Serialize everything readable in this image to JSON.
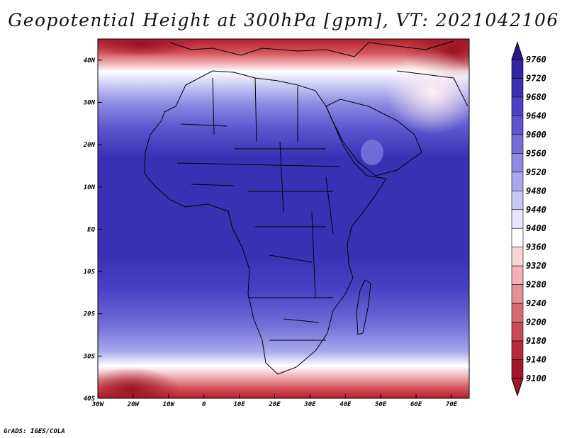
{
  "title": "Geopotential Height at 300hPa [gpm], VT: 2021042106",
  "credit": "GrADS: IGES/COLA",
  "map": {
    "lon_range": [
      -30,
      75
    ],
    "lat_range": [
      -40,
      45
    ],
    "lat_ticks": [
      "40N",
      "30N",
      "20N",
      "10N",
      "EQ",
      "10S",
      "20S",
      "30S",
      "40S"
    ],
    "lon_ticks": [
      "30W",
      "20W",
      "10W",
      "0",
      "10E",
      "20E",
      "30E",
      "40E",
      "50E",
      "60E",
      "70E"
    ]
  },
  "colorbar": {
    "levels": [
      9760,
      9720,
      9680,
      9640,
      9600,
      9560,
      9520,
      9480,
      9440,
      9400,
      9360,
      9320,
      9280,
      9240,
      9200,
      9180,
      9140,
      9100
    ],
    "colors": [
      "#2a1a8c",
      "#3223a2",
      "#3a30b4",
      "#4a42c4",
      "#5c55cf",
      "#7470d9",
      "#8e8be2",
      "#aaa8ec",
      "#c9c8f5",
      "#e7e6fb",
      "#ffffff",
      "#f8d6d8",
      "#f0b2b5",
      "#e58e93",
      "#d96a72",
      "#cc4a55",
      "#b92b3a",
      "#a0172a"
    ]
  }
}
